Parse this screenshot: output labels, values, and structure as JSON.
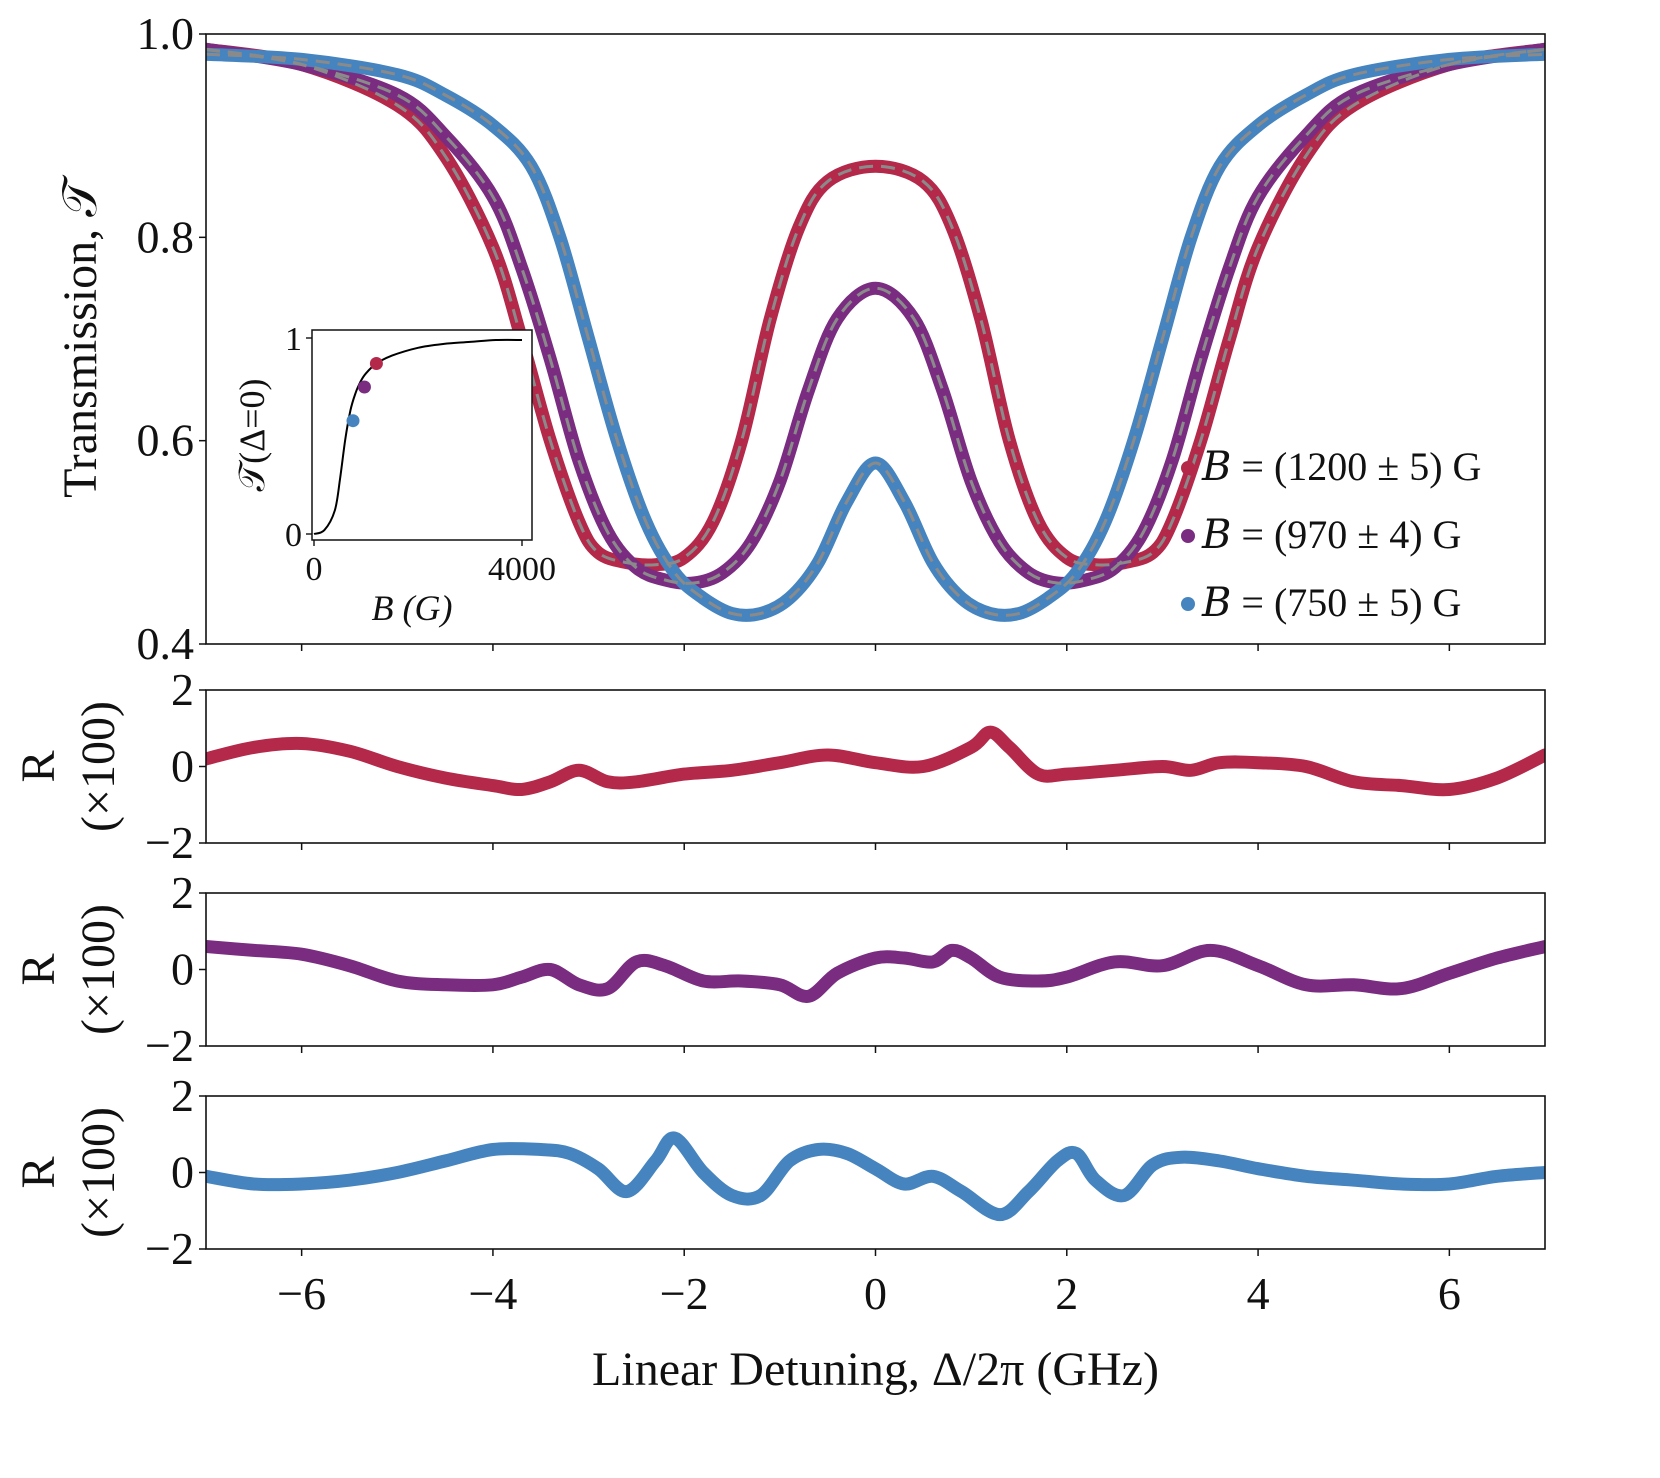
{
  "colors": {
    "red": "#b4284a",
    "purple": "#7a2c80",
    "blue": "#4584bf",
    "fit": "#8a8a8a",
    "axis": "#111111"
  },
  "chart_data": [
    {
      "type": "line",
      "panel": "main",
      "ylabel": "Transmission, 𝒯",
      "xlim": [
        -7,
        7
      ],
      "ylim": [
        0.4,
        1.0
      ],
      "yticks": [
        "0.4",
        "0.6",
        "0.8",
        "1.0"
      ],
      "fit_style": "dashed gray overlay on each series",
      "series": [
        {
          "name": "B = (1200 ± 5) G",
          "color": "#b4284a",
          "x": [
            -7,
            -6,
            -5,
            -4.5,
            -4,
            -3.7,
            -3.4,
            -3.1,
            -2.9,
            -2.6,
            -2.3,
            -2.0,
            -1.7,
            -1.4,
            -1.1,
            -0.8,
            -0.5,
            0,
            0.5,
            0.8,
            1.1,
            1.4,
            1.7,
            2.0,
            2.3,
            2.6,
            2.9,
            3.1,
            3.4,
            3.7,
            4.0,
            4.5,
            5,
            6,
            7
          ],
          "y": [
            0.985,
            0.97,
            0.93,
            0.88,
            0.79,
            0.7,
            0.6,
            0.52,
            0.49,
            0.48,
            0.478,
            0.485,
            0.52,
            0.6,
            0.72,
            0.81,
            0.855,
            0.87,
            0.855,
            0.81,
            0.72,
            0.6,
            0.52,
            0.485,
            0.478,
            0.48,
            0.49,
            0.52,
            0.6,
            0.7,
            0.79,
            0.88,
            0.93,
            0.97,
            0.985
          ]
        },
        {
          "name": "B = (970 ± 4) G",
          "color": "#7a2c80",
          "x": [
            -7,
            -6,
            -5,
            -4.5,
            -4,
            -3.7,
            -3.4,
            -3.1,
            -2.8,
            -2.5,
            -2.2,
            -1.9,
            -1.6,
            -1.3,
            -1.0,
            -0.7,
            -0.4,
            0,
            0.4,
            0.7,
            1.0,
            1.3,
            1.6,
            1.9,
            2.2,
            2.5,
            2.8,
            3.1,
            3.4,
            3.7,
            4.0,
            4.5,
            5,
            6,
            7
          ],
          "y": [
            0.985,
            0.97,
            0.94,
            0.9,
            0.84,
            0.77,
            0.68,
            0.58,
            0.51,
            0.475,
            0.463,
            0.46,
            0.47,
            0.5,
            0.56,
            0.65,
            0.72,
            0.75,
            0.72,
            0.65,
            0.56,
            0.5,
            0.47,
            0.46,
            0.463,
            0.475,
            0.51,
            0.58,
            0.68,
            0.77,
            0.84,
            0.9,
            0.94,
            0.97,
            0.985
          ]
        },
        {
          "name": "B = (750 ± 5) G",
          "color": "#4584bf",
          "x": [
            -7,
            -6,
            -5,
            -4.5,
            -4,
            -3.6,
            -3.3,
            -3.0,
            -2.7,
            -2.4,
            -2.1,
            -1.8,
            -1.5,
            -1.2,
            -0.9,
            -0.6,
            -0.3,
            0,
            0.3,
            0.6,
            0.9,
            1.2,
            1.5,
            1.8,
            2.1,
            2.4,
            2.7,
            3.0,
            3.3,
            3.6,
            4.0,
            4.5,
            5,
            6,
            7
          ],
          "y": [
            0.98,
            0.975,
            0.96,
            0.94,
            0.91,
            0.87,
            0.8,
            0.7,
            0.6,
            0.52,
            0.47,
            0.445,
            0.43,
            0.43,
            0.445,
            0.48,
            0.54,
            0.578,
            0.54,
            0.48,
            0.445,
            0.43,
            0.43,
            0.445,
            0.47,
            0.52,
            0.6,
            0.7,
            0.8,
            0.87,
            0.91,
            0.94,
            0.96,
            0.975,
            0.98
          ]
        }
      ]
    },
    {
      "type": "line",
      "panel": "inset",
      "xlabel": "B (G)",
      "ylabel": "𝒯(Δ=0)",
      "xlim": [
        0,
        4000
      ],
      "ylim": [
        0,
        1
      ],
      "xticks": [
        "0",
        "4000"
      ],
      "yticks": [
        "0",
        "1"
      ],
      "curve": {
        "x": [
          0,
          200,
          400,
          500,
          600,
          700,
          800,
          900,
          1000,
          1200,
          1500,
          2000,
          2500,
          3000,
          3500,
          4000
        ],
        "y": [
          0.0,
          0.02,
          0.12,
          0.28,
          0.48,
          0.63,
          0.72,
          0.78,
          0.82,
          0.87,
          0.91,
          0.95,
          0.97,
          0.98,
          0.99,
          0.99
        ]
      },
      "points": [
        {
          "x": 750,
          "y": 0.578,
          "color": "#4584bf"
        },
        {
          "x": 970,
          "y": 0.75,
          "color": "#7a2c80"
        },
        {
          "x": 1200,
          "y": 0.87,
          "color": "#b4284a"
        }
      ]
    },
    {
      "type": "line",
      "panel": "residual-red",
      "ylabel": "R\n(×100)",
      "xlim": [
        -7,
        7
      ],
      "ylim": [
        -2,
        2
      ],
      "yticks": [
        "−2",
        "0",
        "2"
      ],
      "color": "#b4284a",
      "x": [
        -7,
        -6.5,
        -6,
        -5.5,
        -5,
        -4.5,
        -4,
        -3.7,
        -3.4,
        -3.1,
        -2.8,
        -2.5,
        -2,
        -1.5,
        -1,
        -0.5,
        0,
        0.5,
        1.0,
        1.2,
        1.4,
        1.7,
        2.0,
        2.5,
        3.0,
        3.3,
        3.6,
        4.0,
        4.5,
        5,
        5.5,
        6,
        6.5,
        7
      ],
      "y": [
        0.2,
        0.5,
        0.6,
        0.4,
        0.0,
        -0.3,
        -0.5,
        -0.6,
        -0.4,
        -0.1,
        -0.4,
        -0.4,
        -0.2,
        -0.1,
        0.1,
        0.3,
        0.1,
        0.0,
        0.5,
        0.9,
        0.5,
        -0.2,
        -0.2,
        -0.1,
        0.0,
        -0.1,
        0.1,
        0.1,
        0.0,
        -0.4,
        -0.5,
        -0.6,
        -0.3,
        0.3
      ]
    },
    {
      "type": "line",
      "panel": "residual-purple",
      "ylabel": "R\n(×100)",
      "xlim": [
        -7,
        7
      ],
      "ylim": [
        -2,
        2
      ],
      "yticks": [
        "−2",
        "0",
        "2"
      ],
      "color": "#7a2c80",
      "x": [
        -7,
        -6.5,
        -6,
        -5.5,
        -5,
        -4.5,
        -4,
        -3.7,
        -3.4,
        -3.1,
        -2.8,
        -2.5,
        -2.2,
        -1.8,
        -1.4,
        -1.0,
        -0.7,
        -0.4,
        0,
        0.3,
        0.6,
        0.8,
        1.0,
        1.3,
        1.7,
        2.0,
        2.5,
        3.0,
        3.5,
        4.0,
        4.5,
        5.0,
        5.5,
        6.0,
        6.5,
        7
      ],
      "y": [
        0.6,
        0.5,
        0.4,
        0.1,
        -0.3,
        -0.4,
        -0.4,
        -0.2,
        0.0,
        -0.4,
        -0.5,
        0.2,
        0.1,
        -0.3,
        -0.3,
        -0.4,
        -0.7,
        -0.1,
        0.3,
        0.3,
        0.2,
        0.5,
        0.3,
        -0.2,
        -0.3,
        -0.2,
        0.2,
        0.1,
        0.5,
        0.1,
        -0.4,
        -0.4,
        -0.5,
        -0.1,
        0.3,
        0.6
      ]
    },
    {
      "type": "line",
      "panel": "residual-blue",
      "ylabel": "R\n(×100)",
      "xlim": [
        -7,
        7
      ],
      "ylim": [
        -2,
        2
      ],
      "yticks": [
        "−2",
        "0",
        "2"
      ],
      "xlabel": "Linear Detuning, Δ/2π (GHz)",
      "xticks": [
        "−6",
        "−4",
        "−2",
        "0",
        "2",
        "4",
        "6"
      ],
      "color": "#4584bf",
      "x": [
        -7,
        -6.5,
        -6,
        -5.5,
        -5,
        -4.5,
        -4,
        -3.5,
        -3.2,
        -2.9,
        -2.6,
        -2.3,
        -2.1,
        -1.8,
        -1.5,
        -1.2,
        -0.9,
        -0.6,
        -0.3,
        0,
        0.3,
        0.6,
        0.9,
        1.3,
        1.6,
        1.9,
        2.1,
        2.3,
        2.6,
        2.9,
        3.2,
        3.6,
        4.0,
        4.5,
        5.0,
        5.5,
        6.0,
        6.5,
        7
      ],
      "y": [
        -0.1,
        -0.3,
        -0.3,
        -0.2,
        0.0,
        0.3,
        0.6,
        0.6,
        0.5,
        0.1,
        -0.5,
        0.3,
        0.9,
        0.0,
        -0.6,
        -0.6,
        0.3,
        0.6,
        0.5,
        0.1,
        -0.3,
        -0.1,
        -0.5,
        -1.1,
        -0.5,
        0.3,
        0.5,
        -0.2,
        -0.6,
        0.2,
        0.4,
        0.3,
        0.1,
        -0.1,
        -0.2,
        -0.3,
        -0.3,
        -0.1,
        0.0
      ]
    }
  ],
  "legend": [
    {
      "label": "𝐵 = (1200 ± 5) G",
      "color": "#b4284a"
    },
    {
      "label": "𝐵 = (970 ± 4) G",
      "color": "#7a2c80"
    },
    {
      "label": "𝐵 = (750 ± 5) G",
      "color": "#4584bf"
    }
  ]
}
